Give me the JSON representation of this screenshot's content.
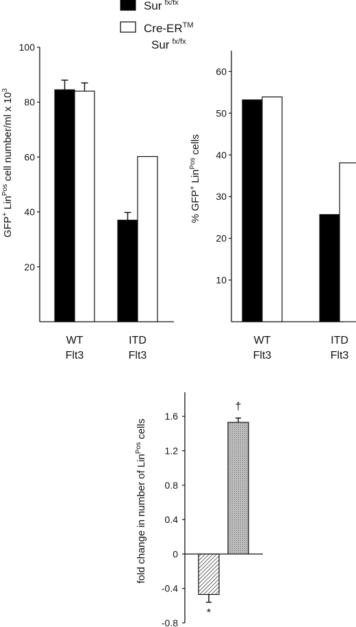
{
  "legend": {
    "items": [
      {
        "fill": "black",
        "label_main": "Sur",
        "label_sup": "fx/fx"
      },
      {
        "fill": "white",
        "label_main": "Cre-ER",
        "label_sup": "TM",
        "label_line2_main": "Sur",
        "label_line2_sup": "fx/fx"
      }
    ]
  },
  "colors": {
    "black_bar": "#000000",
    "white_bar": "#ffffff",
    "axis": "#111111",
    "gray_bar": "#b8b8b8"
  },
  "chart_data": [
    {
      "type": "bar",
      "ylabel_parts": [
        "GFP",
        "+",
        " Lin",
        "Pos",
        " cell number/ml x 10",
        "3"
      ],
      "ylim": [
        0,
        100
      ],
      "yticks": [
        20,
        40,
        60,
        80,
        100
      ],
      "categories": [
        [
          "WT",
          "Flt3"
        ],
        [
          "ITD",
          "Flt3"
        ]
      ],
      "series": [
        {
          "legend_index": 0,
          "values": [
            84.5,
            37
          ],
          "errors": [
            3.5,
            2.8
          ]
        },
        {
          "legend_index": 1,
          "values": [
            84,
            60.2
          ],
          "errors": [
            3,
            0
          ]
        }
      ]
    },
    {
      "type": "bar",
      "ylabel_parts": [
        "% GFP",
        "+",
        " Lin",
        "Pos",
        " cells"
      ],
      "ylim": [
        0,
        65
      ],
      "yticks": [
        10,
        20,
        30,
        40,
        50,
        60
      ],
      "categories": [
        [
          "WT",
          "Flt3"
        ],
        [
          "ITD",
          "Flt3"
        ]
      ],
      "series": [
        {
          "legend_index": 0,
          "values": [
            53.2,
            25.7
          ]
        },
        {
          "legend_index": 1,
          "values": [
            53.9,
            38.1
          ]
        }
      ]
    },
    {
      "type": "bar",
      "ylabel_parts": [
        "fold change in number of  Lin",
        "Pos",
        " cells"
      ],
      "ylim": [
        -0.8,
        1.88
      ],
      "yticks": [
        -0.8,
        -0.4,
        0,
        0.4,
        0.8,
        1.2,
        1.6
      ],
      "ytick_labels": [
        "-0.8",
        "-0.4",
        "0",
        "0.4",
        "0.8",
        "1.2",
        "1.6"
      ],
      "bars": [
        {
          "value": -0.47,
          "error": 0.09,
          "pattern": "hatch",
          "annotation": "*"
        },
        {
          "value": 1.53,
          "error": 0.05,
          "pattern": "dots",
          "annotation": "†"
        }
      ]
    }
  ]
}
